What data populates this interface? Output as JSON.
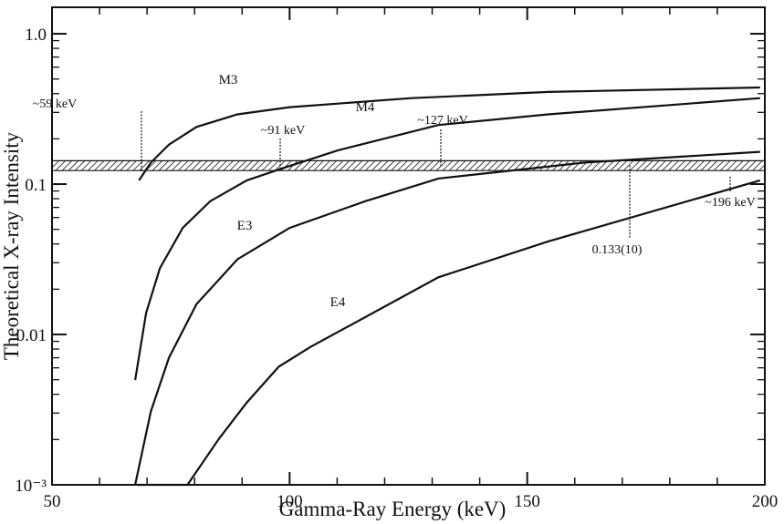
{
  "chart_data": {
    "type": "line",
    "x_label": "Gamma-Ray Energy (keV)",
    "y_label": "Theoretical X-ray Intensity",
    "log_y": true,
    "xlim": [
      50,
      200
    ],
    "ylim": [
      0.001,
      1.5
    ],
    "xticks": [
      50,
      100,
      150,
      200
    ],
    "minor_xticks": [
      60,
      70,
      80,
      90,
      110,
      120,
      130,
      140,
      160,
      170,
      180,
      190
    ],
    "yticks": [
      {
        "value": 0.001,
        "label": "10⁻³"
      },
      0.01,
      0.1,
      {
        "value": 1,
        "label": "1.0"
      }
    ],
    "minor_yticks": [
      0.002,
      0.003,
      0.004,
      0.005,
      0.006,
      0.007,
      0.008,
      0.009,
      0.02,
      0.03,
      0.04,
      0.05,
      0.06,
      0.07,
      0.08,
      0.09,
      0.2,
      0.3,
      0.4,
      0.5,
      0.6,
      0.7,
      0.8,
      0.9
    ],
    "series": [
      {
        "name": "M3",
        "color": "#111111",
        "x": [
          68.3,
          70.8,
          74.6,
          80.4,
          89.0,
          100,
          125.6,
          154.4,
          199
        ],
        "values": [
          0.106,
          0.139,
          0.183,
          0.24,
          0.291,
          0.325,
          0.373,
          0.41,
          0.439
        ]
      },
      {
        "name": "M4",
        "color": "#111111",
        "x": [
          67.5,
          69.8,
          72.7,
          77.5,
          83.3,
          91.0,
          98.7,
          110.2,
          131.3,
          154.4,
          199
        ],
        "values": [
          0.00497,
          0.0139,
          0.0276,
          0.0511,
          0.0771,
          0.106,
          0.128,
          0.168,
          0.247,
          0.291,
          0.373
        ]
      },
      {
        "name": "E3",
        "color": "#111111",
        "x": [
          67.5,
          70.8,
          74.6,
          80.4,
          89.0,
          100,
          116,
          131.3,
          162.1,
          199
        ],
        "values": [
          0.001,
          0.00308,
          0.007,
          0.0159,
          0.0316,
          0.0511,
          0.0771,
          0.109,
          0.139,
          0.164
        ]
      },
      {
        "name": "E4",
        "color": "#111111",
        "x": [
          67.9,
          78.5,
          85.2,
          91.0,
          97.7,
          104.4,
          131.3,
          154.4,
          199
        ],
        "values": [
          0.001,
          0.001,
          0.00204,
          0.00353,
          0.0061,
          0.00826,
          0.024,
          0.0416,
          0.106
        ]
      }
    ],
    "reference_band": {
      "label": "0.133(10)",
      "value": 0.133,
      "error": 0.01
    },
    "annotations": [
      "~59 keV",
      "~91 keV",
      "~127 keV",
      "~196 keV"
    ]
  }
}
